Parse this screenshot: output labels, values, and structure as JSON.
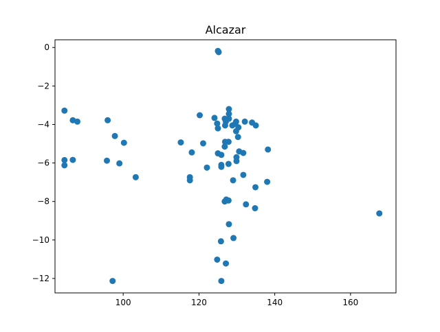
{
  "chart_data": {
    "type": "scatter",
    "title": "Alcazar",
    "xlabel": "",
    "ylabel": "",
    "xlim": [
      82.0,
      172.0
    ],
    "ylim": [
      -12.75,
      0.4
    ],
    "xticks": [
      100,
      120,
      140,
      160
    ],
    "yticks": [
      0,
      -2,
      -4,
      -6,
      -8,
      -10,
      -12
    ],
    "xtick_labels": [
      "100",
      "120",
      "140",
      "160"
    ],
    "ytick_labels": [
      "0",
      "−2",
      "−4",
      "−6",
      "−8",
      "−10",
      "−12"
    ],
    "grid": false,
    "marker_color": "#1f77b4",
    "points": [
      [
        125.0,
        -0.18
      ],
      [
        125.2,
        -0.24
      ],
      [
        84.5,
        -3.28
      ],
      [
        84.5,
        -5.85
      ],
      [
        84.5,
        -6.12
      ],
      [
        86.7,
        -3.78
      ],
      [
        86.7,
        -5.84
      ],
      [
        87.9,
        -3.85
      ],
      [
        95.9,
        -3.78
      ],
      [
        95.7,
        -5.88
      ],
      [
        97.8,
        -4.6
      ],
      [
        99.0,
        -6.02
      ],
      [
        100.2,
        -4.95
      ],
      [
        97.2,
        -12.13
      ],
      [
        103.3,
        -6.74
      ],
      [
        115.2,
        -4.93
      ],
      [
        117.6,
        -6.74
      ],
      [
        117.6,
        -6.9
      ],
      [
        118.1,
        -5.45
      ],
      [
        120.2,
        -3.52
      ],
      [
        121.1,
        -4.98
      ],
      [
        122.1,
        -6.24
      ],
      [
        124.1,
        -3.66
      ],
      [
        124.8,
        -3.95
      ],
      [
        125.0,
        -4.2
      ],
      [
        125.0,
        -5.5
      ],
      [
        125.9,
        -5.58
      ],
      [
        125.9,
        -6.1
      ],
      [
        125.9,
        -6.2
      ],
      [
        126.8,
        -3.7
      ],
      [
        126.9,
        -4.05
      ],
      [
        127.1,
        -3.85
      ],
      [
        126.9,
        -4.9
      ],
      [
        126.8,
        -5.15
      ],
      [
        127.8,
        -4.9
      ],
      [
        127.9,
        -3.2
      ],
      [
        127.9,
        -3.45
      ],
      [
        127.9,
        -3.7
      ],
      [
        127.8,
        -6.05
      ],
      [
        128.8,
        -4.05
      ],
      [
        129.6,
        -3.95
      ],
      [
        129.8,
        -3.85
      ],
      [
        129.8,
        -4.35
      ],
      [
        130.4,
        -4.15
      ],
      [
        130.3,
        -4.65
      ],
      [
        129.9,
        -5.7
      ],
      [
        129.9,
        -5.9
      ],
      [
        130.6,
        -5.4
      ],
      [
        131.7,
        -5.48
      ],
      [
        132.1,
        -3.85
      ],
      [
        134.0,
        -3.9
      ],
      [
        135.0,
        -4.05
      ],
      [
        129.0,
        -6.9
      ],
      [
        131.7,
        -6.62
      ],
      [
        134.9,
        -7.26
      ],
      [
        138.2,
        -5.3
      ],
      [
        138.0,
        -6.98
      ],
      [
        127.2,
        -7.9
      ],
      [
        126.8,
        -8.0
      ],
      [
        127.8,
        -7.95
      ],
      [
        132.4,
        -8.15
      ],
      [
        134.8,
        -8.35
      ],
      [
        127.9,
        -9.18
      ],
      [
        129.1,
        -9.9
      ],
      [
        125.8,
        -10.07
      ],
      [
        124.8,
        -11.02
      ],
      [
        127.1,
        -11.22
      ],
      [
        125.9,
        -12.13
      ],
      [
        167.6,
        -8.62
      ]
    ]
  }
}
